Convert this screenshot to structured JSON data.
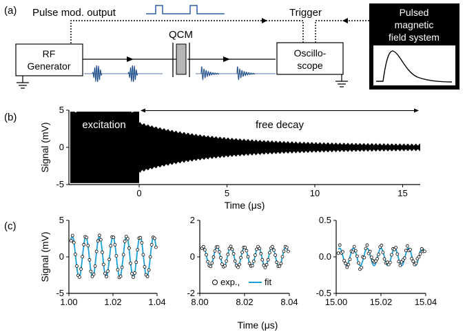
{
  "panel_labels": [
    "(a)",
    "(b)",
    "(c)"
  ],
  "panel_a": {
    "pulse_mod_label": "Pulse mod. output",
    "trigger_label": "Trigger",
    "rf_generator": [
      "RF",
      "Generator"
    ],
    "qcm_label": "QCM",
    "oscilloscope": [
      "Oscillo-",
      "scope"
    ],
    "magnet_system": [
      "Pulsed",
      "magnetic",
      "field system"
    ],
    "colors": {
      "signal": "#1f4e8c",
      "box_dark": "#000000"
    }
  },
  "chart_data": [
    {
      "type": "line",
      "panel": "(b)",
      "xlabel": "Time (μs)",
      "ylabel": "Signal (mV)",
      "xlim": [
        -4,
        16
      ],
      "ylim": [
        -5,
        5
      ],
      "xticks": [
        0,
        5,
        10,
        15
      ],
      "yticks": [
        -5,
        0,
        5
      ],
      "annotations": [
        "excitation",
        "free decay"
      ],
      "excitation_range": [
        -4,
        0
      ],
      "decay_range": [
        0,
        16
      ]
    },
    {
      "type": "line",
      "panel": "(c)-1",
      "ylabel": "Signal (mV)",
      "xlim": [
        1.0,
        1.04
      ],
      "ylim": [
        -5,
        5
      ],
      "xticks": [
        "1.00",
        "1.02",
        "1.04"
      ],
      "yticks": [
        "-5",
        "0",
        "5"
      ],
      "amplitude": 2.8,
      "cycles": 6.5
    },
    {
      "type": "line",
      "panel": "(c)-2",
      "xlim": [
        8.0,
        8.04
      ],
      "ylim": [
        -2,
        2
      ],
      "xticks": [
        "8.00",
        "8.02",
        "8.04"
      ],
      "yticks": [
        "-2",
        "0",
        "2"
      ],
      "amplitude": 0.55,
      "cycles": 6.5,
      "legend": [
        "exp.,",
        "fit"
      ]
    },
    {
      "type": "line",
      "panel": "(c)-3",
      "xlim": [
        15.0,
        15.04
      ],
      "ylim": [
        -0.5,
        0.5
      ],
      "xticks": [
        "15.00",
        "15.02",
        "15.04"
      ],
      "yticks": [
        "-0.5",
        "0.0",
        "0.5"
      ],
      "amplitude": 0.12,
      "cycles": 6.5
    }
  ],
  "shared_xlabel_c": "Time (μs)",
  "colors": {
    "fit": "#1aa0d8",
    "trace": "#000000"
  }
}
